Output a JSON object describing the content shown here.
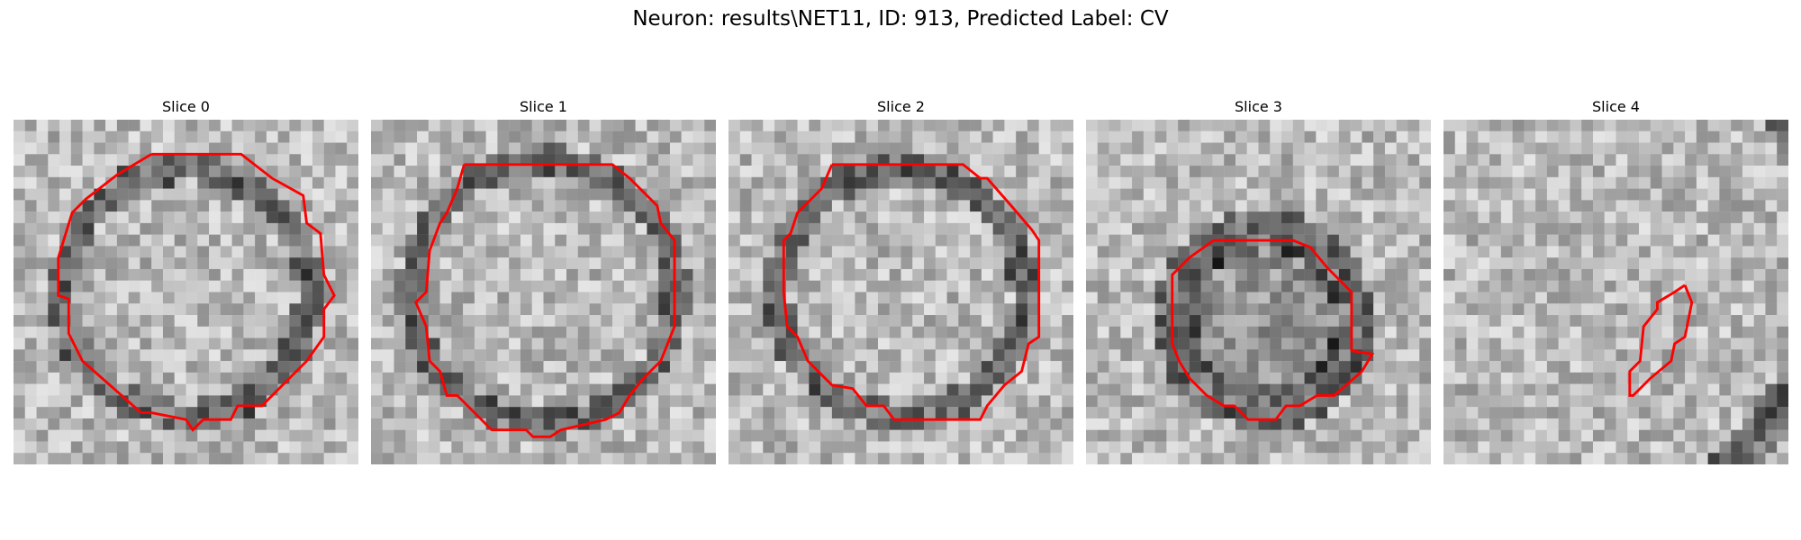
{
  "suptitle": "Neuron: results\\NET11, ID: 913, Predicted Label: CV",
  "slices": [
    {
      "title": "Slice 0"
    },
    {
      "title": "Slice 1"
    },
    {
      "title": "Slice 2"
    },
    {
      "title": "Slice 3"
    },
    {
      "title": "Slice 4"
    }
  ],
  "contour_color": "#ff0000",
  "colormap": "gray"
}
